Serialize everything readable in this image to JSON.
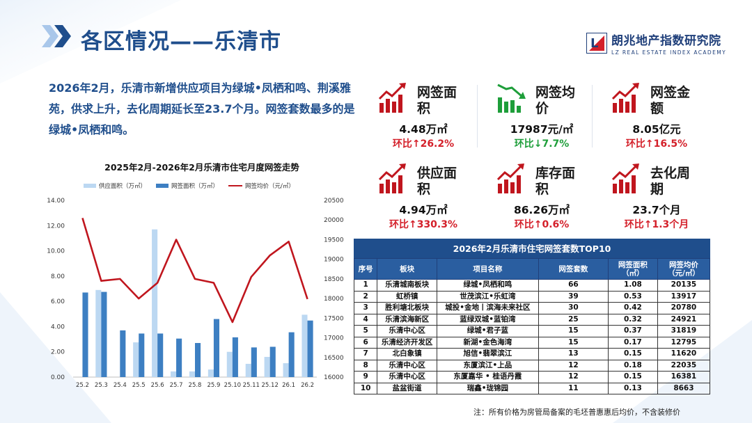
{
  "header": {
    "title": "各区情况——乐清市",
    "logo_name": "朗兆地产指数研究院",
    "logo_sub": "LZ REAL ESTATE INDEX ACADEMY",
    "logo_letter": "L"
  },
  "summary": "2026年2月，乐清市新增供应项目为绿城•凤栖和鸣、荆溪雅苑，供求上升，去化周期延长至23.7个月。网签套数最多的是绿城•凤栖和鸣。",
  "kpis": {
    "area": {
      "label": "网签面积",
      "value": "4.48万㎡",
      "change": "环比↑26.2%",
      "trend": "up"
    },
    "price": {
      "label": "网签均价",
      "value": "17987元/㎡",
      "change": "环比↓7.7%",
      "trend": "down"
    },
    "amount": {
      "label": "网签金额",
      "value": "8.05亿元",
      "change": "环比↑16.5%",
      "trend": "up"
    },
    "supply": {
      "label": "供应面积",
      "value": "4.94万㎡",
      "change": "环比↑330.3%",
      "trend": "up"
    },
    "stock": {
      "label": "库存面积",
      "value": "86.26万㎡",
      "change": "环比↑0.6%",
      "trend": "up"
    },
    "cycle": {
      "label": "去化周期",
      "value": "23.7个月",
      "change": "环比↑1.3个月",
      "trend": "up"
    }
  },
  "colors": {
    "supply_bar": "#bcd8f2",
    "sign_bar": "#3d7fc2",
    "price_line": "#c0161e",
    "title": "#1f4e8c"
  },
  "chart_data": {
    "type": "bar",
    "title": "2025年2月-2026年2月乐清市住宅月度网签走势",
    "categories": [
      "25.2",
      "25.3",
      "25.4",
      "25.5",
      "25.6",
      "25.7",
      "25.8",
      "25.9",
      "25.10",
      "25.11",
      "25.12",
      "26.1",
      "26.2"
    ],
    "series": [
      {
        "name": "供应面积（万㎡）",
        "type": "bar",
        "axis": "left",
        "values": [
          0,
          6.9,
          0,
          2.75,
          11.7,
          0.45,
          0.45,
          0.6,
          2.0,
          1.05,
          1.6,
          1.1,
          4.94
        ]
      },
      {
        "name": "网签面积（万㎡）",
        "type": "bar",
        "axis": "left",
        "values": [
          6.7,
          6.75,
          3.7,
          3.45,
          3.45,
          3.05,
          2.7,
          4.6,
          3.15,
          2.35,
          2.4,
          3.55,
          4.48
        ]
      },
      {
        "name": "网签均价（元/㎡）",
        "type": "line",
        "axis": "right",
        "values": [
          20050,
          18450,
          18500,
          18000,
          18400,
          19500,
          18500,
          18400,
          17400,
          18550,
          19100,
          19450,
          17987
        ]
      }
    ],
    "ylim_left": [
      0,
      14
    ],
    "ylim_right": [
      16000,
      20500
    ],
    "yticks_left": [
      "0.00",
      "2.00",
      "4.00",
      "6.00",
      "8.00",
      "10.00",
      "12.00",
      "14.00"
    ],
    "yticks_right": [
      "16000",
      "16500",
      "17000",
      "17500",
      "18000",
      "18500",
      "19000",
      "19500",
      "20000",
      "20500"
    ],
    "grid": false,
    "legend": "top"
  },
  "table": {
    "title": "2026年2月乐清市住宅网签套数TOP10",
    "headers": [
      "序号",
      "板块",
      "项目名称",
      "网签套数",
      "网签面积\n（㎡）",
      "网签均价\n（元/㎡）"
    ],
    "rows": [
      [
        "1",
        "乐清城南板块",
        "绿城•凤栖和鸣",
        "66",
        "1.08",
        "20135"
      ],
      [
        "2",
        "虹桥镇",
        "世茂滨江•乐虹湾",
        "39",
        "0.53",
        "13917"
      ],
      [
        "3",
        "胜利塘北板块",
        "城投•金地丨滨海未来社区",
        "30",
        "0.42",
        "20780"
      ],
      [
        "4",
        "乐清滨海新区",
        "蓝绿双城•蓝铂湾",
        "25",
        "0.32",
        "24921"
      ],
      [
        "5",
        "乐清中心区",
        "绿城•君子蓝",
        "15",
        "0.37",
        "31819"
      ],
      [
        "6",
        "乐清经济开发区",
        "新湖•金色海湾",
        "15",
        "0.17",
        "12795"
      ],
      [
        "7",
        "北白象镇",
        "旭信•翡翠滨江",
        "13",
        "0.15",
        "11620"
      ],
      [
        "8",
        "乐清中心区",
        "东厦滨江•上品",
        "12",
        "0.18",
        "22035"
      ],
      [
        "9",
        "乐清中心区",
        "东厦嘉华 • 桂语丹霞",
        "12",
        "0.15",
        "16381"
      ],
      [
        "10",
        "盐盆街道",
        "瑞鑫•珑锦园",
        "11",
        "0.13",
        "8663"
      ]
    ]
  },
  "footnote": "注：所有价格为房管局备案的毛坯普惠惠后均价，不含装修价"
}
